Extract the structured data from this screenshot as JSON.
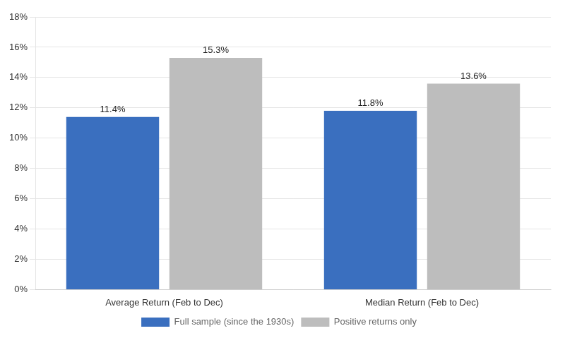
{
  "chart_data": {
    "type": "bar",
    "categories": [
      "Average Return (Feb to Dec)",
      "Median Return (Feb to Dec)"
    ],
    "series": [
      {
        "name": "Full sample (since the 1930s)",
        "color": "#3A6FBF",
        "values": [
          11.4,
          11.8
        ],
        "value_labels": [
          "11.4%",
          "11.8%"
        ]
      },
      {
        "name": "Positive returns only",
        "color": "#BDBDBD",
        "values": [
          15.3,
          13.6
        ],
        "value_labels": [
          "15.3%",
          "13.6%"
        ]
      }
    ],
    "ylim": [
      0,
      18
    ],
    "yticks": [
      {
        "value": 0,
        "label": "0%"
      },
      {
        "value": 2,
        "label": "2%"
      },
      {
        "value": 4,
        "label": "4%"
      },
      {
        "value": 6,
        "label": "6%"
      },
      {
        "value": 8,
        "label": "8%"
      },
      {
        "value": 10,
        "label": "10%"
      },
      {
        "value": 12,
        "label": "12%"
      },
      {
        "value": 14,
        "label": "14%"
      },
      {
        "value": 16,
        "label": "16%"
      },
      {
        "value": 18,
        "label": "18%"
      }
    ],
    "grid": true,
    "legend": "bottom",
    "data_labels": true
  }
}
